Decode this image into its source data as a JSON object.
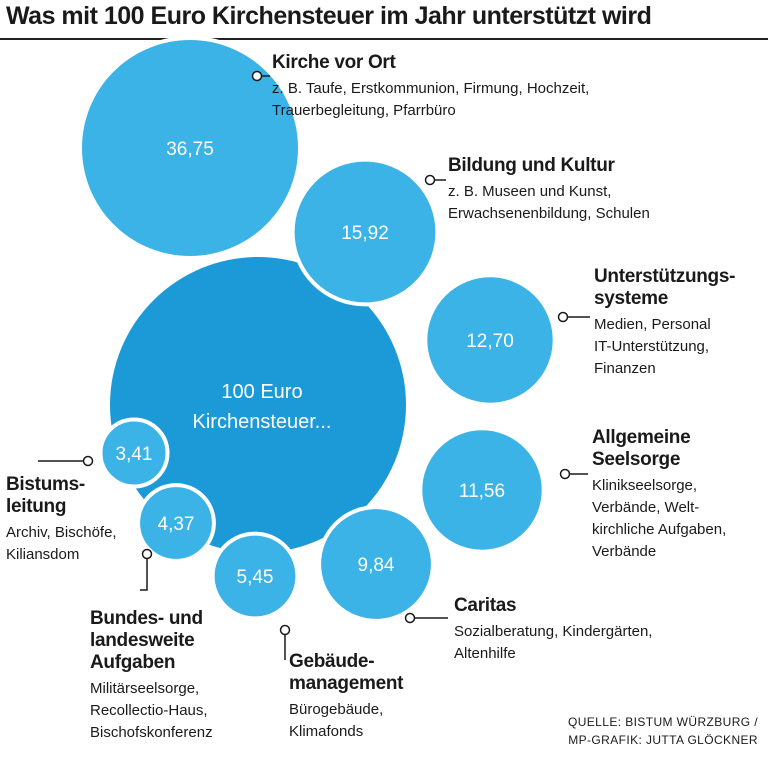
{
  "title": "Was mit 100 Euro Kirchensteuer im Jahr unterstützt wird",
  "center_label": [
    "100 Euro",
    "Kirchensteuer..."
  ],
  "colors": {
    "bubble": "#3bb3e6",
    "center": "#1c9ad8",
    "text": "#1a1a1a"
  },
  "chart_data": {
    "type": "bubble",
    "unit": "Euro",
    "total": 100,
    "categories": [
      {
        "name": [
          "Kirche vor Ort"
        ],
        "value": 36.75,
        "value_label": "36,75",
        "details": [
          "z. B. Taufe, Erstkommunion, Firmung, Hochzeit,",
          "Trauerbegleitung, Pfarrbüro"
        ]
      },
      {
        "name": [
          "Bildung und Kultur"
        ],
        "value": 15.92,
        "value_label": "15,92",
        "details": [
          "z. B. Museen und Kunst,",
          "Erwachsenenbildung, Schulen"
        ]
      },
      {
        "name": [
          "Unterstützungs-",
          "systeme"
        ],
        "value": 12.7,
        "value_label": "12,70",
        "details": [
          "Medien, Personal",
          "IT-Unterstützung,",
          "Finanzen"
        ]
      },
      {
        "name": [
          "Allgemeine",
          "Seelsorge"
        ],
        "value": 11.56,
        "value_label": "11,56",
        "details": [
          "Klinikseelsorge,",
          "Verbände, Welt-",
          "kirchliche Aufgaben,",
          "Verbände"
        ]
      },
      {
        "name": [
          "Caritas"
        ],
        "value": 9.84,
        "value_label": "9,84",
        "details": [
          "Sozialberatung, Kindergärten,",
          "Altenhilfe"
        ]
      },
      {
        "name": [
          "Gebäude-",
          "management"
        ],
        "value": 5.45,
        "value_label": "5,45",
        "details": [
          "Bürogebäude,",
          "Klimafonds"
        ]
      },
      {
        "name": [
          "Bundes- und",
          "landesweite",
          "Aufgaben"
        ],
        "value": 4.37,
        "value_label": "4,37",
        "details": [
          "Militärseelsorge,",
          "Recollectio-Haus,",
          "Bischofskonferenz"
        ]
      },
      {
        "name": [
          "Bistums-",
          "leitung"
        ],
        "value": 3.41,
        "value_label": "3,41",
        "details": [
          "Archiv, Bischöfe,",
          "Kiliansdom"
        ]
      }
    ]
  },
  "source": [
    "QUELLE: BISTUM WÜRZBURG  /",
    "MP-GRAFIK: JUTTA GLÖCKNER"
  ]
}
